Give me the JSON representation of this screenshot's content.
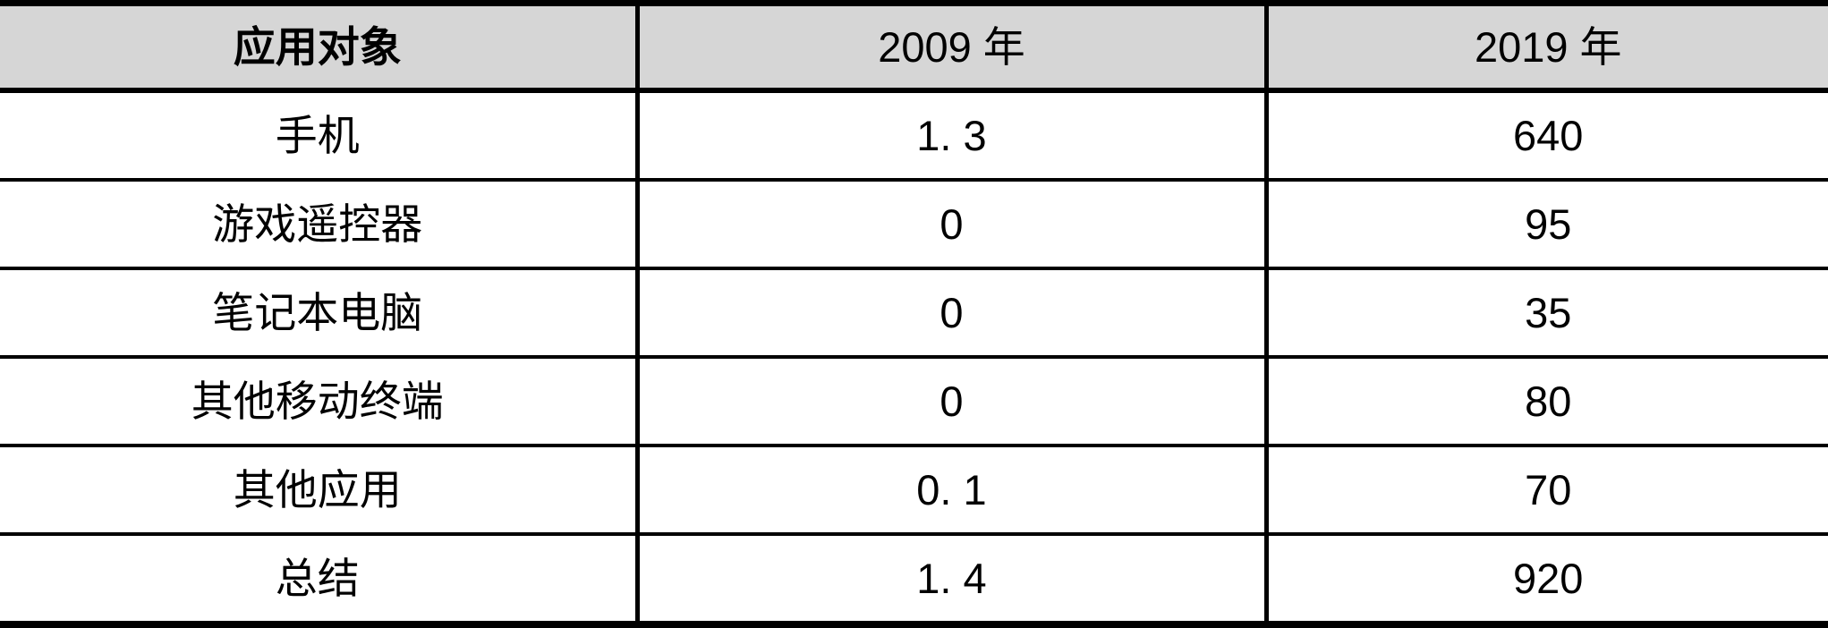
{
  "table": {
    "header": {
      "col1": "应用对象",
      "col2": "2009 年",
      "col3": "2019 年"
    },
    "rows": [
      {
        "label": "手机",
        "v2009": "1. 3",
        "v2019": "640"
      },
      {
        "label": "游戏遥控器",
        "v2009": "0",
        "v2019": "95"
      },
      {
        "label": "笔记本电脑",
        "v2009": "0",
        "v2019": "35"
      },
      {
        "label": "其他移动终端",
        "v2009": "0",
        "v2019": "80"
      },
      {
        "label": "其他应用",
        "v2009": "0. 1",
        "v2019": "70"
      },
      {
        "label": "总结",
        "v2009": "1. 4",
        "v2019": "920"
      }
    ]
  },
  "colors": {
    "header_bg": "#d6d6d6",
    "border": "#000000",
    "text": "#000000",
    "row_bg": "#ffffff"
  },
  "chart_data": {
    "type": "table",
    "title": "",
    "columns": [
      "应用对象",
      "2009 年",
      "2019 年"
    ],
    "categories": [
      "手机",
      "游戏遥控器",
      "笔记本电脑",
      "其他移动终端",
      "其他应用",
      "总结"
    ],
    "series": [
      {
        "name": "2009 年",
        "values": [
          1.3,
          0,
          0,
          0,
          0.1,
          1.4
        ]
      },
      {
        "name": "2019 年",
        "values": [
          640,
          95,
          35,
          80,
          70,
          920
        ]
      }
    ]
  }
}
